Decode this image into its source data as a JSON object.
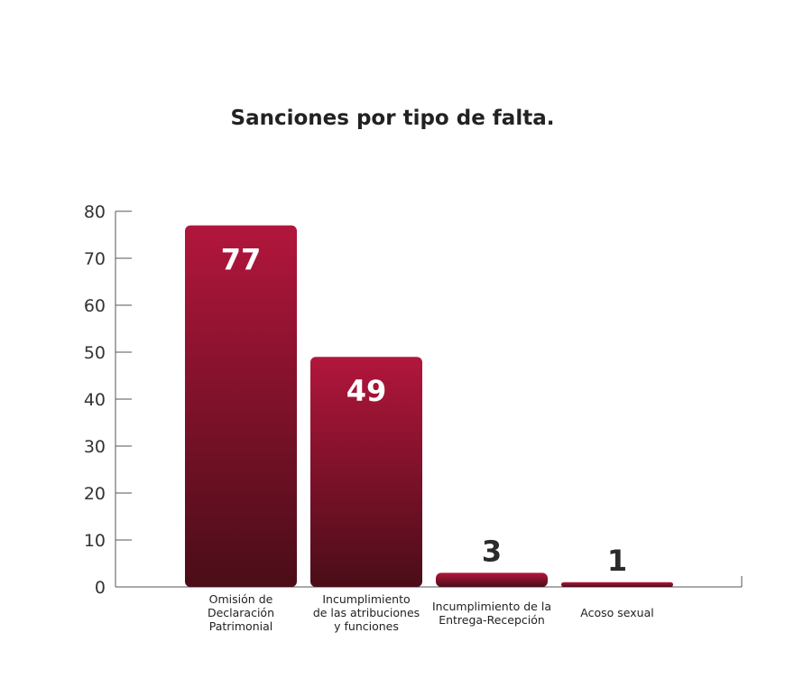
{
  "chart_data": {
    "type": "bar",
    "title": "Sanciones por tipo de falta.",
    "categories": [
      [
        "Omisión de",
        "Declaración",
        "Patrimonial"
      ],
      [
        "Incumplimiento",
        "de las atribuciones",
        "y funciones"
      ],
      [
        "Incumplimiento de la",
        "Entrega-Recepción"
      ],
      [
        "Acoso sexual"
      ]
    ],
    "values": [
      77,
      49,
      3,
      1
    ],
    "ylim": [
      0,
      80
    ],
    "yticks": [
      0,
      10,
      20,
      30,
      40,
      50,
      60,
      70,
      80
    ],
    "grid": false,
    "colors": {
      "bar_top": "#b2163c",
      "bar_bottom": "#4a0d18",
      "label_inside": "#ffffff",
      "label_outside": "#2b2b2b",
      "axis": "#555555"
    }
  }
}
